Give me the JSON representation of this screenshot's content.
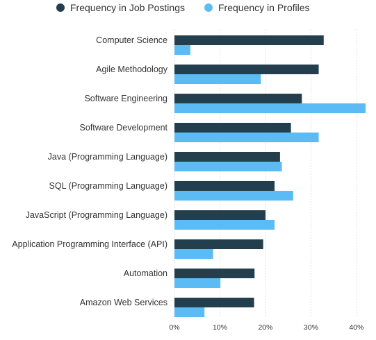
{
  "chart_data": {
    "type": "bar",
    "orientation": "horizontal",
    "title": "",
    "xlabel": "",
    "ylabel": "",
    "categories": [
      "Computer Science",
      "Agile Methodology",
      "Software Engineering",
      "Software Development",
      "Java (Programming Language)",
      "SQL (Programming Language)",
      "JavaScript (Programming Language)",
      "Application Programming Interface (API)",
      "Automation",
      "Amazon Web Services"
    ],
    "series": [
      {
        "name": "Frequency in Job Postings",
        "color": "#233f4d",
        "values": [
          32.8,
          31.7,
          28.0,
          25.6,
          23.2,
          22.0,
          20.0,
          19.5,
          17.6,
          17.5
        ]
      },
      {
        "name": "Frequency in Profiles",
        "color": "#5bbcf5",
        "values": [
          3.5,
          19.0,
          42.0,
          31.7,
          23.6,
          26.1,
          22.0,
          8.5,
          10.1,
          6.6
        ]
      }
    ],
    "xlim": [
      0,
      42
    ],
    "xticks": [
      0,
      10,
      20,
      30,
      40
    ],
    "xtick_labels": [
      "0%",
      "10%",
      "20%",
      "30%",
      "40%"
    ],
    "grid": "vertical",
    "legend_position": "top-left"
  }
}
